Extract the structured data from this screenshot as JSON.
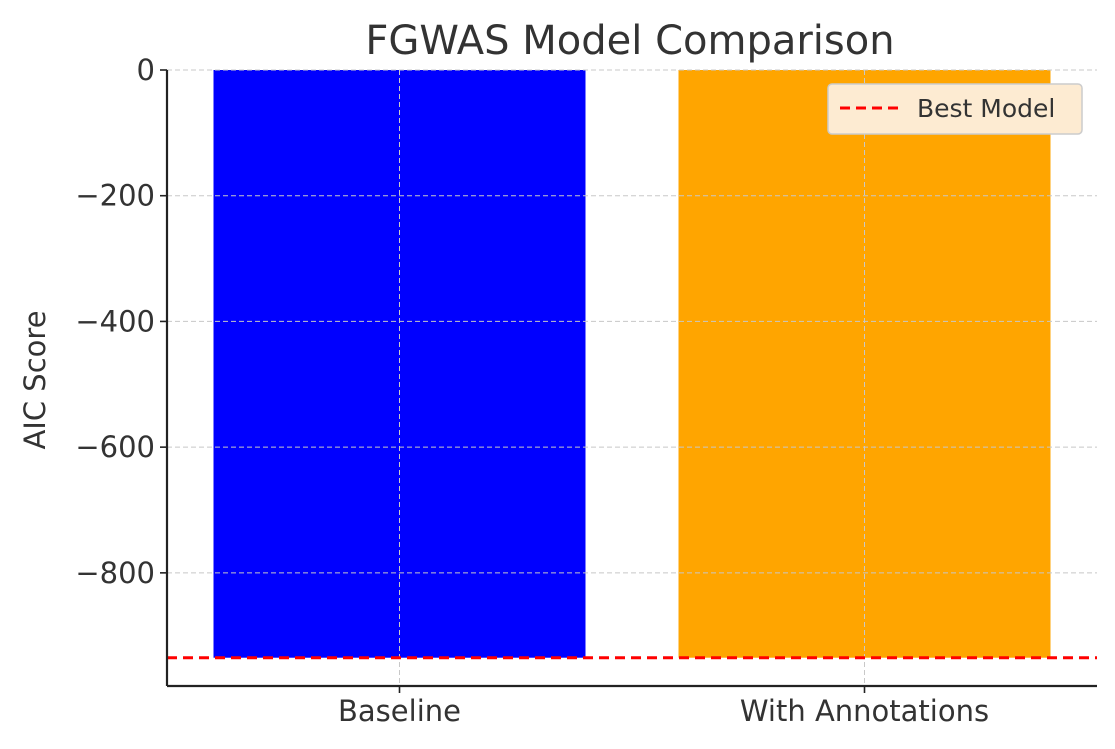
{
  "chart_data": {
    "type": "bar",
    "title": "FGWAS Model Comparison",
    "xlabel": "",
    "ylabel": "AIC Score",
    "categories": [
      "Baseline",
      "With Annotations"
    ],
    "values": [
      -935,
      -935
    ],
    "bar_colors": [
      "#0000ff",
      "#ffa500"
    ],
    "ylim": [
      -980,
      0
    ],
    "yticks": [
      0,
      -200,
      -400,
      -600,
      -800
    ],
    "ytick_labels": [
      "0",
      "−200",
      "−400",
      "−600",
      "−800"
    ],
    "grid": true,
    "reference_line": {
      "label": "Best Model",
      "value": -935,
      "color": "#ff0000",
      "style": "dashed"
    },
    "legend": {
      "placement": "top-right",
      "entries": [
        "Best Model"
      ]
    }
  }
}
